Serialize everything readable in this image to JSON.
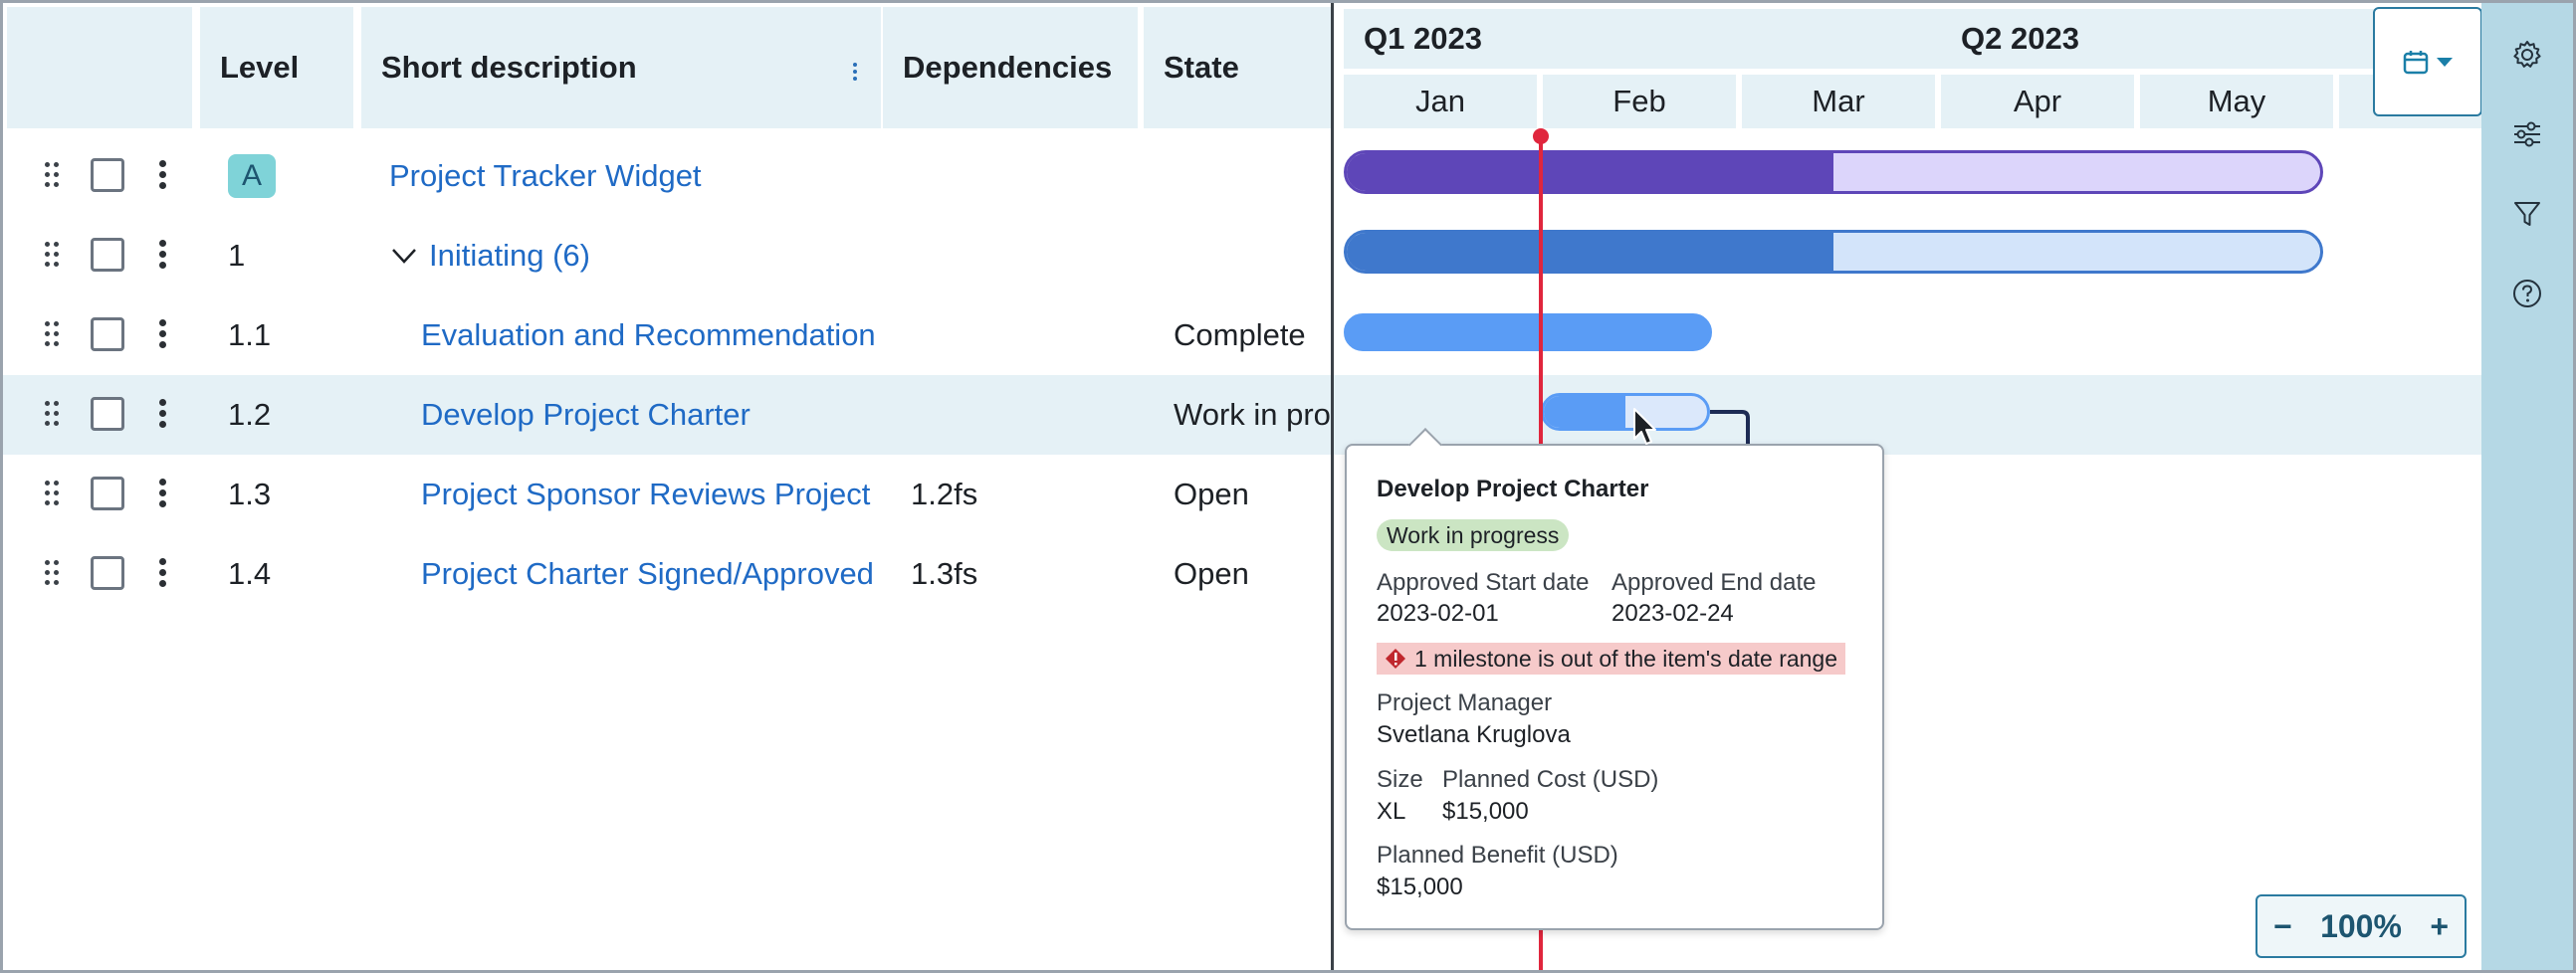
{
  "columns": {
    "level": "Level",
    "short_description": "Short description",
    "dependencies": "Dependencies",
    "state": "State"
  },
  "timeline": {
    "quarters": [
      "Q1 2023",
      "Q2 2023"
    ],
    "months": [
      "Jan",
      "Feb",
      "Mar",
      "Apr",
      "May"
    ]
  },
  "rows": [
    {
      "level": "A",
      "description": "Project Tracker Widget",
      "dependencies": "",
      "state": ""
    },
    {
      "level": "1",
      "description": "Initiating (6)",
      "dependencies": "",
      "state": ""
    },
    {
      "level": "1.1",
      "description": "Evaluation and Recommendation",
      "dependencies": "",
      "state": "Complete"
    },
    {
      "level": "1.2",
      "description": "Develop Project Charter",
      "dependencies": "",
      "state": "Work in progress"
    },
    {
      "level": "1.3",
      "description": "Project Sponsor Reviews Project",
      "dependencies": "1.2fs",
      "state": "Open"
    },
    {
      "level": "1.4",
      "description": "Project Charter Signed/Approved",
      "dependencies": "1.3fs",
      "state": "Open"
    }
  ],
  "tooltip": {
    "title": "Develop Project Charter",
    "state": "Work in progress",
    "start_label": "Approved Start date",
    "start_value": "2023-02-01",
    "end_label": "Approved End date",
    "end_value": "2023-02-24",
    "warning": "1 milestone is out of the item's date range",
    "pm_label": "Project Manager",
    "pm_value": "Svetlana Kruglova",
    "size_label": "Size",
    "size_value": "XL",
    "cost_label": "Planned Cost (USD)",
    "cost_value": "$15,000",
    "benefit_label": "Planned Benefit (USD)",
    "benefit_value": "$15,000"
  },
  "zoom": {
    "level": "100%",
    "minus": "−",
    "plus": "+"
  },
  "bars": [
    {
      "progress": 0.5,
      "fill": "#5e46b8",
      "track": "#dcd5fb",
      "border": "#5e46b8"
    },
    {
      "progress": 0.5,
      "fill": "#3f78cc",
      "track": "#d3e4fa",
      "border": "#3f78cc"
    },
    {
      "progress": 1.0,
      "fill": "#5a9cf5",
      "track": "#5a9cf5",
      "border": "#5a9cf5"
    },
    {
      "progress": 0.5,
      "fill": "#5a9cf5",
      "track": "#dbe8fb",
      "border": "#5a9cf5"
    }
  ],
  "icons": {
    "calendar": "calendar-icon",
    "settings": "gear-icon",
    "sliders": "sliders-icon",
    "filter": "filter-icon",
    "help": "help-icon"
  }
}
